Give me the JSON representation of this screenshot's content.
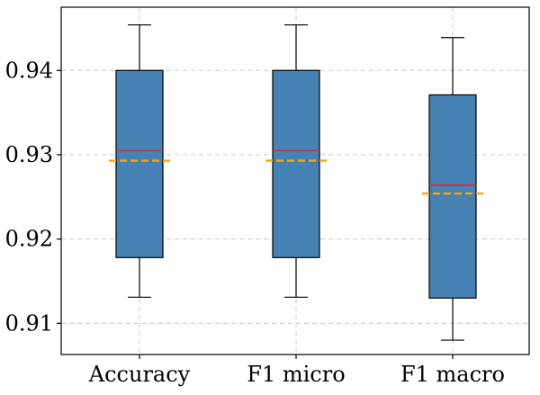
{
  "chart_data": {
    "type": "box",
    "title": "",
    "xlabel": "",
    "ylabel": "",
    "categories": [
      "Accuracy",
      "F1 micro",
      "F1 macro"
    ],
    "boxes": [
      {
        "name": "Accuracy",
        "whisker_low": 0.9131,
        "q1": 0.9178,
        "median": 0.9305,
        "mean": 0.9293,
        "q3": 0.94,
        "whisker_high": 0.9454
      },
      {
        "name": "F1 micro",
        "whisker_low": 0.9131,
        "q1": 0.9178,
        "median": 0.9305,
        "mean": 0.9293,
        "q3": 0.94,
        "whisker_high": 0.9454
      },
      {
        "name": "F1 macro",
        "whisker_low": 0.908,
        "q1": 0.913,
        "median": 0.9264,
        "mean": 0.9254,
        "q3": 0.9371,
        "whisker_high": 0.9439
      }
    ],
    "ylim": [
      0.9063,
      0.9475
    ],
    "yticks": [
      0.91,
      0.92,
      0.93,
      0.94
    ],
    "ytick_labels": [
      "0.91",
      "0.92",
      "0.93",
      "0.94"
    ],
    "grid": true,
    "colors": {
      "box": "#4682b4",
      "median": "#d62728",
      "mean": "#ffa500"
    }
  }
}
